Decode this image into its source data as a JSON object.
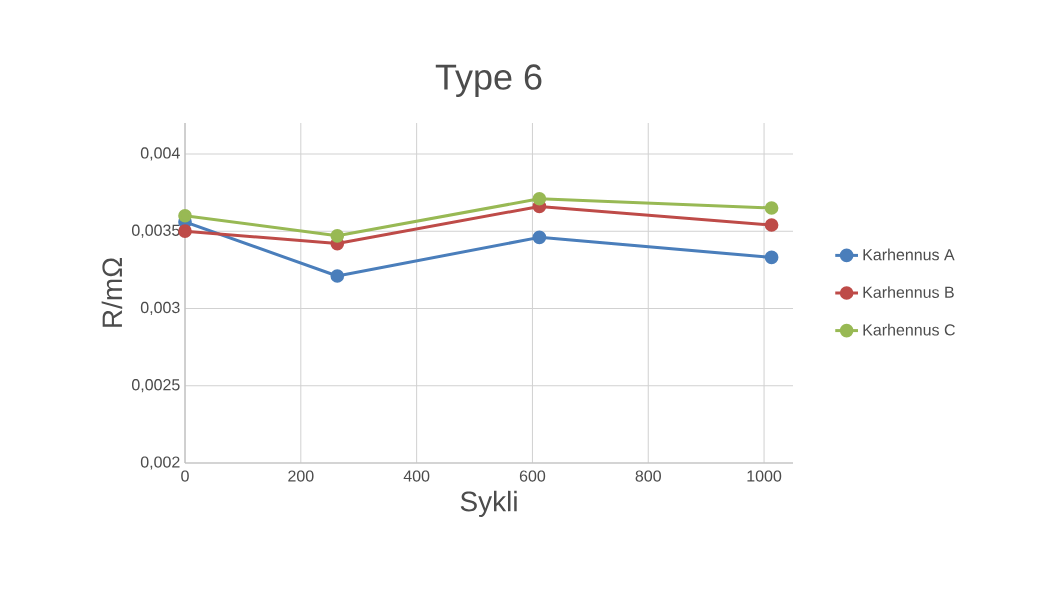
{
  "chart_data": {
    "type": "line",
    "title": "Type 6",
    "xlabel": "Sykli",
    "ylabel": "R/mΩ",
    "xlim": [
      0,
      1050
    ],
    "xticks": [
      0,
      200,
      400,
      600,
      800,
      1000
    ],
    "ylim": [
      0.002,
      0.0042
    ],
    "yticks": [
      {
        "value": 0.002,
        "label": "0,002"
      },
      {
        "value": 0.0025,
        "label": "0,0025"
      },
      {
        "value": 0.003,
        "label": "0,003"
      },
      {
        "value": 0.0035,
        "label": "0,0035"
      },
      {
        "value": 0.004,
        "label": "0,004"
      }
    ],
    "grid": true,
    "legend": "right",
    "marker": "circle",
    "series": [
      {
        "name": "Karhennus A",
        "color": "#4a7ebb",
        "x": [
          0,
          263,
          612,
          1013
        ],
        "values": [
          0.00356,
          0.00321,
          0.00346,
          0.00333
        ]
      },
      {
        "name": "Karhennus B",
        "color": "#be4b48",
        "x": [
          0,
          263,
          612,
          1013
        ],
        "values": [
          0.0035,
          0.00342,
          0.00366,
          0.00354
        ]
      },
      {
        "name": "Karhennus C",
        "color": "#98b954",
        "x": [
          0,
          263,
          612,
          1013
        ],
        "values": [
          0.0036,
          0.00347,
          0.00371,
          0.00365
        ]
      }
    ]
  }
}
